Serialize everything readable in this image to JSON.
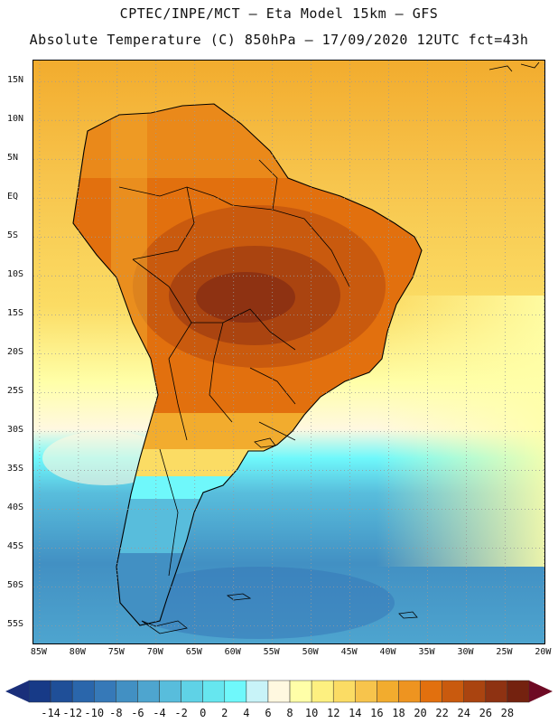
{
  "header": {
    "line1": "CPTEC/INPE/MCT –  Eta Model 15km – GFS",
    "line2": "Absolute Temperature (C) 850hPa – 17/09/2020 12UTC fct=43h"
  },
  "axes": {
    "lat_labels": [
      "15N",
      "10N",
      "5N",
      "EQ",
      "5S",
      "10S",
      "15S",
      "20S",
      "25S",
      "30S",
      "35S",
      "40S",
      "45S",
      "50S",
      "55S"
    ],
    "lat_values": [
      15,
      10,
      5,
      0,
      -5,
      -10,
      -15,
      -20,
      -25,
      -30,
      -35,
      -40,
      -45,
      -50,
      -55
    ],
    "lon_labels": [
      "85W",
      "80W",
      "75W",
      "70W",
      "65W",
      "60W",
      "55W",
      "50W",
      "45W",
      "40W",
      "35W",
      "30W",
      "25W",
      "20W"
    ],
    "lon_values": [
      -85,
      -80,
      -75,
      -70,
      -65,
      -60,
      -55,
      -50,
      -45,
      -40,
      -35,
      -30,
      -25,
      -20
    ],
    "lat_range": [
      -57.5,
      17.7
    ],
    "lon_range": [
      -85.8,
      -19.7
    ]
  },
  "colorbar": {
    "labels": [
      "-14",
      "-12",
      "-10",
      "-8",
      "-6",
      "-4",
      "-2",
      "0",
      "2",
      "4",
      "6",
      "8",
      "10",
      "12",
      "14",
      "16",
      "18",
      "20",
      "22",
      "24",
      "26",
      "28"
    ],
    "colors": [
      "#173a87",
      "#1f4f98",
      "#2a66ab",
      "#3679b8",
      "#4290c3",
      "#4ea5cf",
      "#58bddc",
      "#5fd2e6",
      "#66e6ef",
      "#6ff8fb",
      "#c8f3f8",
      "#fff8e0",
      "#ffffa8",
      "#fdf080",
      "#fbdc64",
      "#f7c44c",
      "#f2ac2e",
      "#ee9420",
      "#e2700e",
      "#c95a0e",
      "#aa4410",
      "#8e3212",
      "#74220f"
    ],
    "low_arrow_color": "#1a2f7a",
    "high_arrow_color": "#6e0a24"
  },
  "map": {
    "ocean_north": "#f2ac2e",
    "ocean_south": "#4ea5cf",
    "land_north": "#e2700e",
    "land_core": "#aa4410",
    "coastline_color": "#000000"
  }
}
